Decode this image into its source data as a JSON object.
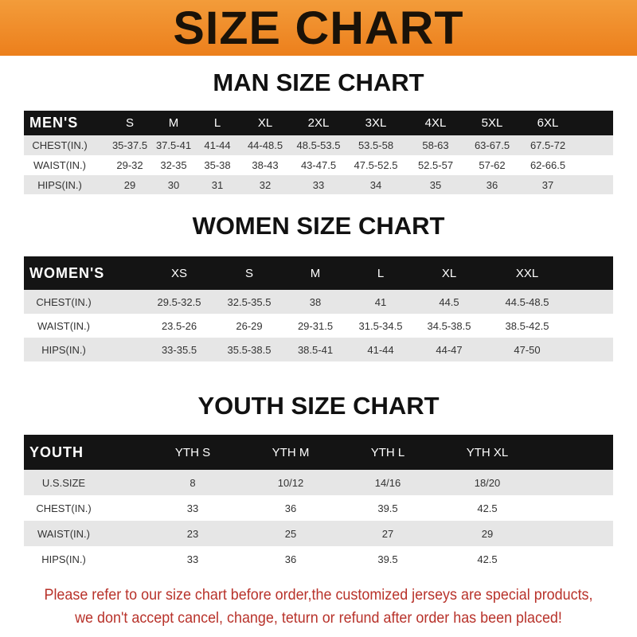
{
  "banner_title": "SIZE CHART",
  "men": {
    "title": "MAN SIZE CHART",
    "header": [
      "MEN'S",
      "S",
      "M",
      "L",
      "XL",
      "2XL",
      "3XL",
      "4XL",
      "5XL",
      "6XL"
    ],
    "rows": [
      [
        "CHEST(IN.)",
        "35-37.5",
        "37.5-41",
        "41-44",
        "44-48.5",
        "48.5-53.5",
        "53.5-58",
        "58-63",
        "63-67.5",
        "67.5-72"
      ],
      [
        "WAIST(IN.)",
        "29-32",
        "32-35",
        "35-38",
        "38-43",
        "43-47.5",
        "47.5-52.5",
        "52.5-57",
        "57-62",
        "62-66.5"
      ],
      [
        "HIPS(IN.)",
        "29",
        "30",
        "31",
        "32",
        "33",
        "34",
        "35",
        "36",
        "37"
      ]
    ]
  },
  "women": {
    "title": "WOMEN SIZE CHART",
    "header": [
      "WOMEN'S",
      "XS",
      "S",
      "M",
      "L",
      "XL",
      "XXL"
    ],
    "rows": [
      [
        "CHEST(IN.)",
        "29.5-32.5",
        "32.5-35.5",
        "38",
        "41",
        "44.5",
        "44.5-48.5"
      ],
      [
        "WAIST(IN.)",
        "23.5-26",
        "26-29",
        "29-31.5",
        "31.5-34.5",
        "34.5-38.5",
        "38.5-42.5"
      ],
      [
        "HIPS(IN.)",
        "33-35.5",
        "35.5-38.5",
        "38.5-41",
        "41-44",
        "44-47",
        "47-50"
      ]
    ]
  },
  "youth": {
    "title": "YOUTH SIZE CHART",
    "header": [
      "YOUTH",
      "YTH S",
      "YTH M",
      "YTH L",
      "YTH XL"
    ],
    "rows": [
      [
        "U.S.SIZE",
        "8",
        "10/12",
        "14/16",
        "18/20"
      ],
      [
        "CHEST(IN.)",
        "33",
        "36",
        "39.5",
        "42.5"
      ],
      [
        "WAIST(IN.)",
        "23",
        "25",
        "27",
        "29"
      ],
      [
        "HIPS(IN.)",
        "33",
        "36",
        "39.5",
        "42.5"
      ]
    ]
  },
  "footer": {
    "line1": "Please refer to our size chart before order,the customized jerseys are special products,",
    "line2": "we don't accept cancel, change, teturn or refund after order has been placed!"
  },
  "colors": {
    "banner": "#ec7f1c",
    "header_row": "#141414",
    "stripe": "#e6e6e6",
    "footer_text": "#b8322a"
  }
}
